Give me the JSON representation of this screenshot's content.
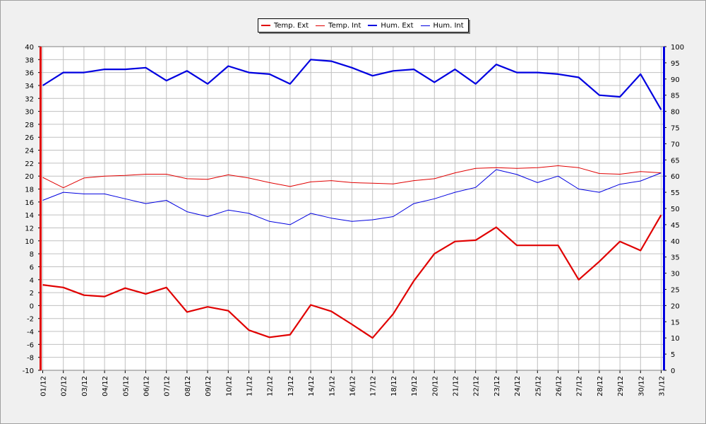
{
  "chart_data": {
    "type": "line",
    "x": [
      "01/12",
      "02/12",
      "03/12",
      "04/12",
      "05/12",
      "06/12",
      "07/12",
      "08/12",
      "09/12",
      "10/12",
      "11/12",
      "12/12",
      "13/12",
      "14/12",
      "15/12",
      "16/12",
      "17/12",
      "18/12",
      "19/12",
      "20/12",
      "21/12",
      "22/12",
      "23/12",
      "24/12",
      "25/12",
      "26/12",
      "27/12",
      "28/12",
      "29/12",
      "30/12",
      "31/12"
    ],
    "y_left": {
      "min": -10,
      "max": 40,
      "step": 2,
      "ticks": [
        "40",
        "38",
        "36",
        "34",
        "32",
        "30",
        "28",
        "26",
        "24",
        "22",
        "20",
        "18",
        "16",
        "14",
        "12",
        "10",
        "8",
        "6",
        "4",
        "2",
        "0",
        "-2",
        "-4",
        "-6",
        "-8",
        "-10"
      ]
    },
    "y_right": {
      "min": 0,
      "max": 100,
      "step": 5,
      "ticks": [
        "100",
        "95",
        "90",
        "85",
        "80",
        "75",
        "70",
        "65",
        "60",
        "55",
        "50",
        "45",
        "40",
        "35",
        "30",
        "25",
        "20",
        "15",
        "10",
        "5",
        "0"
      ]
    },
    "grid": true,
    "legend_position": "top-center",
    "series": [
      {
        "name": "Temp. Ext",
        "axis": "left",
        "color": "#e00000",
        "bold": true,
        "values": [
          3.2,
          2.8,
          1.6,
          1.4,
          2.7,
          1.8,
          2.8,
          -1.0,
          -0.2,
          -0.8,
          -3.8,
          -4.9,
          -4.5,
          0.1,
          -0.9,
          -2.9,
          -5.0,
          -1.3,
          3.8,
          8.0,
          9.9,
          10.1,
          12.1,
          9.3,
          9.3,
          9.3,
          4.0,
          6.8,
          9.9,
          8.5,
          14.0
        ]
      },
      {
        "name": "Temp. Int",
        "axis": "left",
        "color": "#e00000",
        "bold": false,
        "values": [
          19.8,
          18.2,
          19.7,
          20.0,
          20.1,
          20.3,
          20.3,
          19.6,
          19.5,
          20.2,
          19.7,
          19.0,
          18.4,
          19.1,
          19.3,
          19.0,
          18.9,
          18.8,
          19.3,
          19.6,
          20.5,
          21.2,
          21.3,
          21.2,
          21.3,
          21.6,
          21.3,
          20.4,
          20.3,
          20.7,
          20.5
        ]
      },
      {
        "name": "Hum. Ext",
        "axis": "right",
        "color": "#0000e0",
        "bold": true,
        "values": [
          88,
          92,
          92,
          93,
          93,
          93.5,
          89.5,
          92.5,
          88.5,
          94,
          92,
          91.5,
          88.5,
          96,
          95.5,
          93.5,
          91,
          92.5,
          93,
          89,
          93,
          88.5,
          94.5,
          92,
          92,
          91.5,
          90.5,
          85,
          84.5,
          91.5,
          80.5
        ]
      },
      {
        "name": "Hum. Int",
        "axis": "right",
        "color": "#0000e0",
        "bold": false,
        "values": [
          52.5,
          55,
          54.5,
          54.5,
          53,
          51.5,
          52.5,
          49,
          47.5,
          49.5,
          48.5,
          46,
          45,
          48.5,
          47,
          46,
          46.5,
          47.5,
          51.5,
          53,
          55,
          56.5,
          62,
          60.5,
          58,
          60,
          56,
          55,
          57.5,
          58.5,
          61
        ]
      }
    ]
  }
}
